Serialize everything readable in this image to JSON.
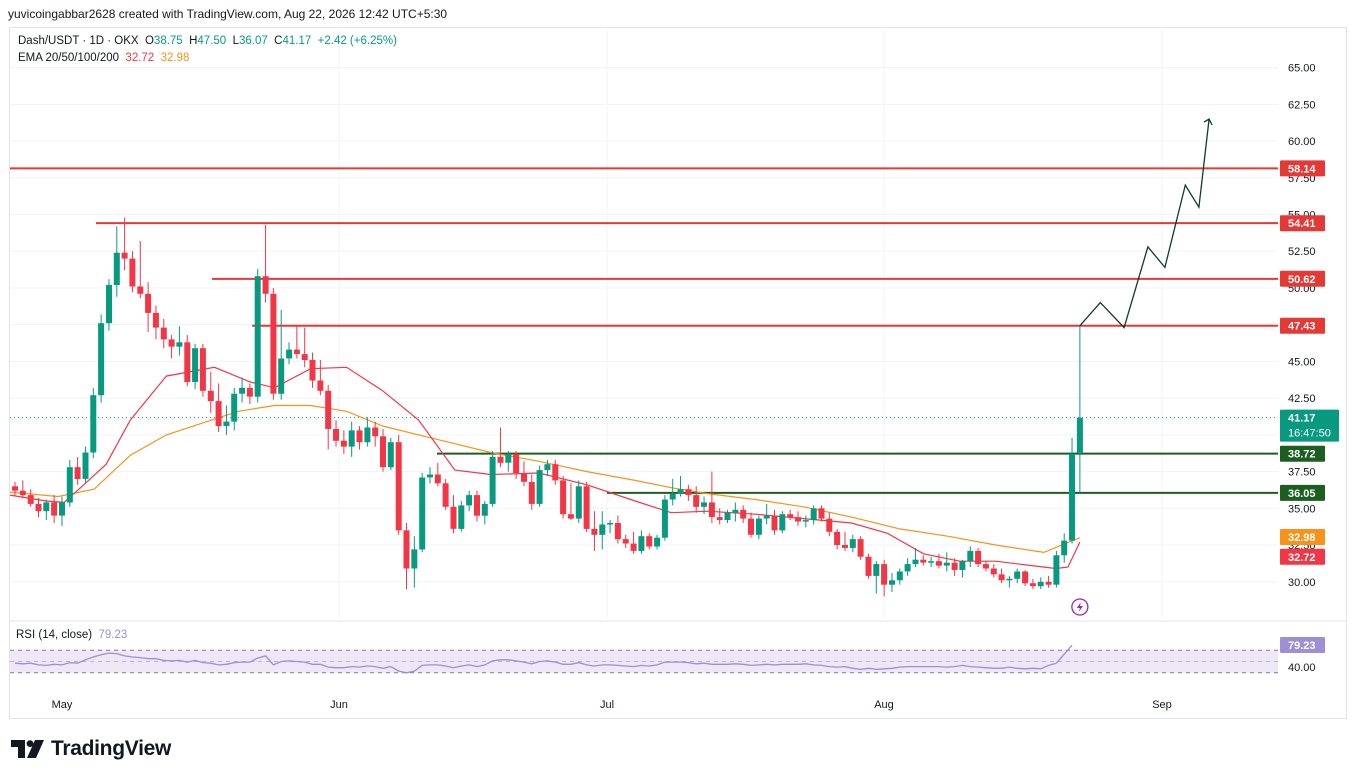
{
  "header": {
    "credit": "yuvicoingabbar2628 created with TradingView.com, Aug 22, 2026 12:42 UTC+5:30"
  },
  "legend": {
    "symbol": "Dash/USDT · 1D · OKX",
    "open_label": "O",
    "open": "38.75",
    "high_label": "H",
    "high": "47.50",
    "low_label": "L",
    "low": "36.07",
    "close_label": "C",
    "close": "41.17",
    "change": "+2.42 (+6.25%)",
    "ema_label": "EMA 20/50/100/200",
    "ema20": "32.72",
    "ema50": "32.98"
  },
  "rsi": {
    "label": "RSI (14, close)",
    "value": "79.23"
  },
  "footer": {
    "logo_text": "TradingView"
  },
  "colors": {
    "up": "#089981",
    "down": "#f23645",
    "ema20": "#f23645",
    "ema50": "#f7931a",
    "resistance": "#e53935",
    "support": "#1b5e20",
    "rsi": "#9c8fd3",
    "rsi_band": "#ede7f6"
  },
  "chart_data": {
    "type": "candlestick",
    "x_ticks": [
      "May",
      "Jun",
      "Jul",
      "Aug",
      "Sep"
    ],
    "y_ticks": [
      30.0,
      32.5,
      35.0,
      37.5,
      40.0,
      42.5,
      45.0,
      47.5,
      50.0,
      52.5,
      55.0,
      57.5,
      60.0,
      62.5,
      65.0
    ],
    "ylim": [
      28.0,
      67.0
    ],
    "last_price": 41.17,
    "countdown": "16:47:50",
    "ema20_last": 32.72,
    "ema50_last": 32.98,
    "resistance_levels": [
      58.14,
      54.41,
      50.62,
      47.43
    ],
    "support_levels": [
      38.72,
      36.05
    ],
    "candles": [
      [
        36.5,
        36.8,
        35.8,
        36.2
      ],
      [
        36.2,
        36.9,
        35.7,
        35.9
      ],
      [
        35.9,
        36.3,
        35.1,
        35.3
      ],
      [
        35.3,
        35.7,
        34.4,
        34.8
      ],
      [
        34.8,
        35.6,
        34.2,
        35.4
      ],
      [
        35.4,
        35.9,
        34.0,
        34.5
      ],
      [
        34.5,
        35.8,
        33.8,
        35.4
      ],
      [
        35.4,
        38.3,
        35.1,
        37.8
      ],
      [
        37.8,
        38.5,
        36.6,
        37.0
      ],
      [
        37.0,
        39.2,
        36.7,
        38.8
      ],
      [
        38.8,
        43.2,
        38.4,
        42.7
      ],
      [
        42.7,
        48.2,
        42.2,
        47.6
      ],
      [
        47.6,
        50.6,
        47.1,
        50.2
      ],
      [
        50.2,
        54.2,
        49.4,
        52.4
      ],
      [
        52.4,
        54.8,
        51.2,
        52.0
      ],
      [
        52.0,
        52.5,
        49.7,
        50.1
      ],
      [
        50.1,
        53.2,
        49.3,
        49.6
      ],
      [
        49.6,
        50.4,
        47.0,
        48.3
      ],
      [
        48.3,
        48.8,
        46.5,
        47.3
      ],
      [
        47.3,
        47.9,
        45.9,
        46.5
      ],
      [
        46.5,
        46.8,
        45.2,
        46.0
      ],
      [
        46.0,
        47.4,
        45.4,
        46.3
      ],
      [
        46.3,
        46.8,
        43.3,
        43.6
      ],
      [
        43.6,
        46.2,
        43.1,
        45.9
      ],
      [
        45.9,
        46.2,
        42.6,
        43.0
      ],
      [
        43.0,
        44.3,
        41.5,
        42.3
      ],
      [
        42.3,
        43.5,
        40.2,
        40.6
      ],
      [
        40.6,
        42.0,
        40.0,
        40.9
      ],
      [
        40.9,
        43.2,
        40.3,
        42.8
      ],
      [
        42.8,
        43.9,
        42.2,
        43.2
      ],
      [
        43.2,
        43.5,
        42.1,
        42.6
      ],
      [
        42.6,
        51.3,
        42.2,
        50.8
      ],
      [
        50.8,
        54.3,
        49.0,
        49.6
      ],
      [
        49.6,
        50.0,
        42.4,
        42.8
      ],
      [
        42.8,
        48.5,
        42.4,
        45.2
      ],
      [
        45.2,
        46.3,
        44.8,
        45.8
      ],
      [
        45.8,
        47.5,
        45.2,
        45.5
      ],
      [
        45.5,
        47.3,
        44.6,
        45.1
      ],
      [
        45.1,
        45.6,
        43.2,
        43.7
      ],
      [
        43.7,
        45.1,
        42.7,
        43.0
      ],
      [
        43.0,
        43.4,
        39.0,
        40.4
      ],
      [
        40.4,
        41.0,
        39.2,
        39.6
      ],
      [
        39.6,
        40.3,
        38.7,
        39.2
      ],
      [
        39.2,
        40.9,
        38.5,
        40.3
      ],
      [
        40.3,
        40.6,
        39.0,
        39.5
      ],
      [
        39.5,
        41.2,
        39.2,
        40.5
      ],
      [
        40.5,
        40.9,
        39.2,
        39.9
      ],
      [
        39.9,
        40.4,
        37.5,
        37.8
      ],
      [
        37.8,
        39.8,
        37.6,
        39.5
      ],
      [
        39.5,
        40.0,
        33.2,
        33.5
      ],
      [
        33.5,
        34.0,
        29.5,
        30.9
      ],
      [
        30.9,
        33.1,
        29.6,
        32.2
      ],
      [
        32.2,
        37.4,
        32.0,
        37.1
      ],
      [
        37.1,
        37.8,
        36.7,
        37.3
      ],
      [
        37.3,
        38.1,
        36.5,
        36.7
      ],
      [
        36.7,
        37.0,
        34.9,
        35.1
      ],
      [
        35.1,
        35.9,
        33.3,
        33.6
      ],
      [
        33.6,
        35.5,
        33.4,
        35.2
      ],
      [
        35.2,
        36.2,
        34.8,
        35.9
      ],
      [
        35.9,
        36.2,
        34.1,
        34.5
      ],
      [
        34.5,
        35.5,
        33.9,
        35.3
      ],
      [
        35.3,
        38.9,
        35.1,
        38.5
      ],
      [
        38.5,
        40.5,
        37.8,
        38.1
      ],
      [
        38.1,
        38.9,
        37.5,
        38.7
      ],
      [
        38.7,
        38.9,
        37.0,
        37.4
      ],
      [
        37.4,
        38.2,
        36.5,
        36.8
      ],
      [
        36.8,
        37.3,
        34.9,
        35.3
      ],
      [
        35.3,
        37.9,
        35.1,
        37.6
      ],
      [
        37.6,
        38.3,
        37.2,
        38.0
      ],
      [
        38.0,
        38.3,
        36.6,
        36.9
      ],
      [
        36.9,
        37.2,
        34.3,
        34.6
      ],
      [
        34.6,
        36.7,
        34.2,
        34.3
      ],
      [
        34.3,
        36.9,
        34.0,
        36.5
      ],
      [
        36.5,
        36.8,
        33.4,
        33.6
      ],
      [
        33.6,
        34.8,
        32.1,
        33.2
      ],
      [
        33.2,
        34.8,
        32.2,
        33.9
      ],
      [
        33.9,
        34.2,
        33.3,
        34.0
      ],
      [
        34.0,
        34.5,
        32.6,
        32.9
      ],
      [
        32.9,
        33.2,
        32.3,
        32.6
      ],
      [
        32.6,
        33.4,
        31.9,
        32.1
      ],
      [
        32.1,
        33.5,
        31.9,
        33.1
      ],
      [
        33.1,
        33.3,
        32.2,
        32.4
      ],
      [
        32.4,
        33.2,
        32.2,
        33.0
      ],
      [
        33.0,
        35.9,
        32.8,
        35.6
      ],
      [
        35.6,
        37.0,
        35.2,
        36.0
      ],
      [
        36.0,
        37.2,
        35.8,
        36.3
      ],
      [
        36.3,
        36.6,
        35.5,
        35.9
      ],
      [
        35.9,
        36.5,
        34.7,
        35.1
      ],
      [
        35.1,
        35.8,
        34.6,
        35.4
      ],
      [
        35.4,
        37.5,
        34.0,
        34.4
      ],
      [
        34.4,
        35.0,
        33.9,
        34.2
      ],
      [
        34.2,
        34.9,
        34.0,
        34.7
      ],
      [
        34.7,
        35.4,
        34.1,
        34.9
      ],
      [
        34.9,
        35.2,
        34.0,
        34.3
      ],
      [
        34.3,
        34.7,
        33.0,
        33.2
      ],
      [
        33.2,
        34.5,
        32.9,
        34.3
      ],
      [
        34.3,
        35.3,
        33.9,
        34.5
      ],
      [
        34.5,
        34.9,
        33.2,
        33.5
      ],
      [
        33.5,
        34.8,
        33.3,
        34.6
      ],
      [
        34.6,
        34.9,
        34.2,
        34.4
      ],
      [
        34.4,
        34.8,
        33.8,
        34.1
      ],
      [
        34.1,
        34.5,
        33.7,
        34.2
      ],
      [
        34.2,
        35.2,
        33.9,
        35.0
      ],
      [
        35.0,
        35.2,
        34.1,
        34.3
      ],
      [
        34.3,
        34.7,
        33.1,
        33.4
      ],
      [
        33.4,
        33.6,
        32.2,
        32.5
      ],
      [
        32.5,
        33.4,
        32.1,
        32.3
      ],
      [
        32.3,
        33.2,
        32.0,
        32.9
      ],
      [
        32.9,
        33.1,
        31.5,
        31.7
      ],
      [
        31.7,
        31.9,
        30.2,
        30.4
      ],
      [
        30.4,
        31.4,
        29.2,
        31.2
      ],
      [
        31.2,
        31.5,
        29.0,
        29.8
      ],
      [
        29.8,
        30.6,
        29.3,
        30.1
      ],
      [
        30.1,
        30.9,
        29.8,
        30.7
      ],
      [
        30.7,
        31.6,
        30.4,
        31.2
      ],
      [
        31.2,
        32.3,
        31.0,
        31.5
      ],
      [
        31.5,
        31.8,
        31.1,
        31.3
      ],
      [
        31.3,
        31.7,
        31.0,
        31.4
      ],
      [
        31.4,
        31.9,
        30.9,
        31.1
      ],
      [
        31.1,
        32.0,
        30.7,
        31.3
      ],
      [
        31.3,
        31.6,
        30.4,
        30.8
      ],
      [
        30.8,
        31.5,
        30.3,
        31.4
      ],
      [
        31.4,
        32.4,
        31.0,
        32.1
      ],
      [
        32.1,
        32.3,
        31.0,
        31.2
      ],
      [
        31.2,
        31.4,
        30.7,
        30.9
      ],
      [
        30.9,
        31.2,
        30.3,
        30.5
      ],
      [
        30.5,
        30.9,
        29.9,
        30.1
      ],
      [
        30.1,
        30.4,
        29.6,
        30.2
      ],
      [
        30.2,
        30.9,
        29.9,
        30.7
      ],
      [
        30.7,
        30.8,
        29.7,
        29.9
      ],
      [
        29.9,
        30.2,
        29.5,
        29.7
      ],
      [
        29.7,
        30.3,
        29.5,
        30.0
      ],
      [
        30.0,
        30.4,
        29.6,
        29.8
      ],
      [
        29.8,
        32.1,
        29.6,
        31.8
      ],
      [
        31.8,
        33.3,
        31.3,
        32.8
      ],
      [
        32.8,
        39.8,
        32.6,
        38.7
      ],
      [
        38.75,
        47.5,
        36.07,
        41.17
      ]
    ],
    "ema20": [
      [
        0,
        35.9
      ],
      [
        0.03,
        35.5
      ],
      [
        0.045,
        35.4
      ],
      [
        0.06,
        36.5
      ],
      [
        0.08,
        38.0
      ],
      [
        0.1,
        41.0
      ],
      [
        0.13,
        44.0
      ],
      [
        0.17,
        44.6
      ],
      [
        0.2,
        43.6
      ],
      [
        0.22,
        43.2
      ],
      [
        0.25,
        44.5
      ],
      [
        0.28,
        44.6
      ],
      [
        0.31,
        43.0
      ],
      [
        0.34,
        41.0
      ],
      [
        0.37,
        37.6
      ],
      [
        0.4,
        37.3
      ],
      [
        0.44,
        37.4
      ],
      [
        0.48,
        36.6
      ],
      [
        0.52,
        35.5
      ],
      [
        0.55,
        34.7
      ],
      [
        0.58,
        34.8
      ],
      [
        0.62,
        34.6
      ],
      [
        0.66,
        34.3
      ],
      [
        0.7,
        34.0
      ],
      [
        0.73,
        33.3
      ],
      [
        0.76,
        31.9
      ],
      [
        0.79,
        31.4
      ],
      [
        0.82,
        31.4
      ],
      [
        0.85,
        31.1
      ],
      [
        0.87,
        30.9
      ],
      [
        0.88,
        31.0
      ],
      [
        0.89,
        32.7
      ]
    ],
    "ema50": [
      [
        0,
        36.1
      ],
      [
        0.04,
        35.8
      ],
      [
        0.07,
        36.3
      ],
      [
        0.1,
        38.6
      ],
      [
        0.13,
        40.0
      ],
      [
        0.16,
        40.8
      ],
      [
        0.19,
        41.6
      ],
      [
        0.22,
        42.0
      ],
      [
        0.25,
        42.0
      ],
      [
        0.28,
        41.6
      ],
      [
        0.31,
        40.6
      ],
      [
        0.34,
        40.0
      ],
      [
        0.37,
        39.4
      ],
      [
        0.4,
        38.8
      ],
      [
        0.44,
        38.2
      ],
      [
        0.48,
        37.5
      ],
      [
        0.52,
        36.9
      ],
      [
        0.55,
        36.4
      ],
      [
        0.58,
        36.0
      ],
      [
        0.62,
        35.6
      ],
      [
        0.66,
        35.1
      ],
      [
        0.7,
        34.4
      ],
      [
        0.74,
        33.6
      ],
      [
        0.78,
        33.1
      ],
      [
        0.82,
        32.5
      ],
      [
        0.86,
        32.0
      ],
      [
        0.89,
        33.0
      ]
    ],
    "projection": [
      [
        0,
        47.43
      ],
      [
        1.2,
        49.0
      ],
      [
        2.6,
        47.3
      ],
      [
        4.0,
        52.8
      ],
      [
        5.0,
        51.4
      ],
      [
        6.2,
        57.0
      ],
      [
        7.0,
        55.5
      ],
      [
        7.6,
        61.5
      ]
    ],
    "rsi": {
      "band": [
        30,
        70
      ],
      "middle": 50,
      "y_ticks": [
        40.0
      ],
      "last": 79.23,
      "values": [
        47,
        46,
        47,
        44,
        43,
        45,
        44,
        48,
        47,
        53,
        58,
        62,
        65,
        64,
        60,
        58,
        57,
        55,
        55,
        52,
        51,
        52,
        49,
        52,
        48,
        47,
        44,
        45,
        48,
        49,
        49,
        56,
        60,
        44,
        50,
        51,
        50,
        49,
        45,
        45,
        40,
        39,
        39,
        41,
        40,
        42,
        41,
        38,
        41,
        33,
        30,
        33,
        43,
        44,
        44,
        42,
        39,
        42,
        44,
        41,
        44,
        51,
        53,
        53,
        51,
        49,
        46,
        50,
        51,
        49,
        45,
        45,
        48,
        44,
        42,
        44,
        44,
        43,
        42,
        41,
        43,
        42,
        44,
        49,
        49,
        49,
        48,
        46,
        47,
        45,
        45,
        45,
        46,
        45,
        43,
        44,
        45,
        44,
        45,
        45,
        45,
        46,
        44,
        43,
        41,
        40,
        41,
        38,
        36,
        38,
        36,
        37,
        38,
        40,
        41,
        41,
        41,
        41,
        41,
        40,
        41,
        43,
        41,
        40,
        39,
        38,
        38,
        40,
        38,
        37,
        38,
        37,
        43,
        47,
        63,
        79
      ]
    }
  }
}
